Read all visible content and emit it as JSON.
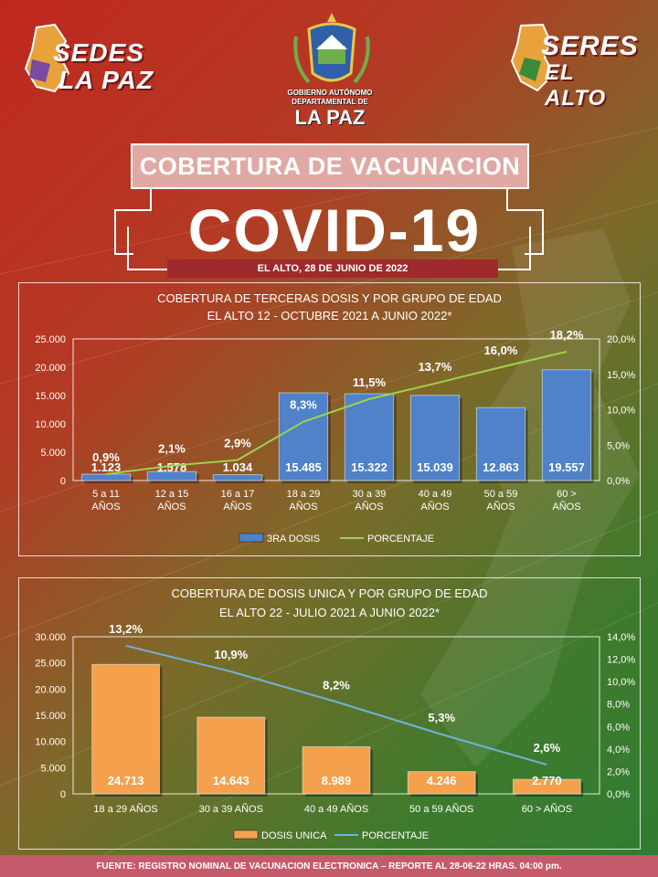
{
  "header": {
    "logo_left": {
      "line1": "SEDES",
      "line2": "LA PAZ"
    },
    "logo_right": {
      "line1": "SERES",
      "line2": "EL ALTO"
    },
    "seal_text": {
      "line1": "GOBIERNO AUTÓNOMO",
      "line2": "DEPARTAMENTAL DE",
      "line3": "LA PAZ"
    },
    "title": "COBERTURA DE VACUNACION",
    "covid": "COVID-19",
    "date": "EL ALTO, 28 DE JUNIO DE 2022"
  },
  "colors": {
    "bar_blue": "#4f82c8",
    "bar_orange": "#f4a04d",
    "line_green": "#9ed34a",
    "line_blue": "#6fb3d9"
  },
  "chart_data": [
    {
      "type": "bar",
      "title": "COBERTURA DE TERCERAS DOSIS  Y POR GRUPO DE EDAD",
      "subtitle": "EL ALTO 12 - OCTUBRE 2021 A JUNIO 2022*",
      "categories": [
        "5 a 11 AÑOS",
        "12 a 15 AÑOS",
        "16 a 17 AÑOS",
        "18 a 29 AÑOS",
        "30 a 39 AÑOS",
        "40 a 49 AÑOS",
        "50 a 59 AÑOS",
        "60 > AÑOS"
      ],
      "series": [
        {
          "name": "3RA DOSIS",
          "values": [
            1123,
            1578,
            1034,
            15485,
            15322,
            15039,
            12863,
            19557
          ],
          "labels": [
            "1.123",
            "1.578",
            "1.034",
            "15.485",
            "15.322",
            "15.039",
            "12.863",
            "19.557"
          ]
        },
        {
          "name": "PORCENTAJE",
          "values": [
            0.9,
            2.1,
            2.9,
            8.3,
            11.5,
            13.7,
            16.0,
            18.2
          ],
          "labels": [
            "0,9%",
            "2,1%",
            "2,9%",
            "8,3%",
            "11,5%",
            "13,7%",
            "16,0%",
            "18,2%"
          ]
        }
      ],
      "ylim": [
        0,
        25000
      ],
      "y2lim": [
        0,
        20
      ],
      "y_ticks": [
        "0",
        "5.000",
        "10.000",
        "15.000",
        "20.000",
        "25.000"
      ],
      "y2_ticks": [
        "0,0%",
        "5,0%",
        "10,0%",
        "15,0%",
        "20,0%"
      ],
      "legend": [
        "3RA DOSIS",
        "PORCENTAJE"
      ]
    },
    {
      "type": "bar",
      "title": "COBERTURA DE DOSIS UNICA  Y POR GRUPO DE EDAD",
      "subtitle": "EL ALTO 22 - JULIO 2021 A  JUNIO 2022*",
      "categories": [
        "18 a 29 AÑOS",
        "30 a 39 AÑOS",
        "40 a 49 AÑOS",
        "50 a 59 AÑOS",
        "60 > AÑOS"
      ],
      "series": [
        {
          "name": "DOSIS UNICA",
          "values": [
            24713,
            14643,
            8989,
            4246,
            2770
          ],
          "labels": [
            "24.713",
            "14.643",
            "8.989",
            "4.246",
            "2.770"
          ]
        },
        {
          "name": "PORCENTAJE",
          "values": [
            13.2,
            10.9,
            8.2,
            5.3,
            2.6
          ],
          "labels": [
            "13,2%",
            "10,9%",
            "8,2%",
            "5,3%",
            "2,6%"
          ]
        }
      ],
      "ylim": [
        0,
        30000
      ],
      "y2lim": [
        0,
        14
      ],
      "y_ticks": [
        "0",
        "5.000",
        "10.000",
        "15.000",
        "20.000",
        "25.000",
        "30.000"
      ],
      "y2_ticks": [
        "0,0%",
        "2,0%",
        "4,0%",
        "6,0%",
        "8,0%",
        "10,0%",
        "12,0%",
        "14,0%"
      ],
      "legend": [
        "DOSIS UNICA",
        "PORCENTAJE"
      ]
    }
  ],
  "footer": "FUENTE: REGISTRO NOMINAL DE VACUNACION ELECTRONICA – REPORTE AL 28-06-22 HRAS. 04:00 pm."
}
